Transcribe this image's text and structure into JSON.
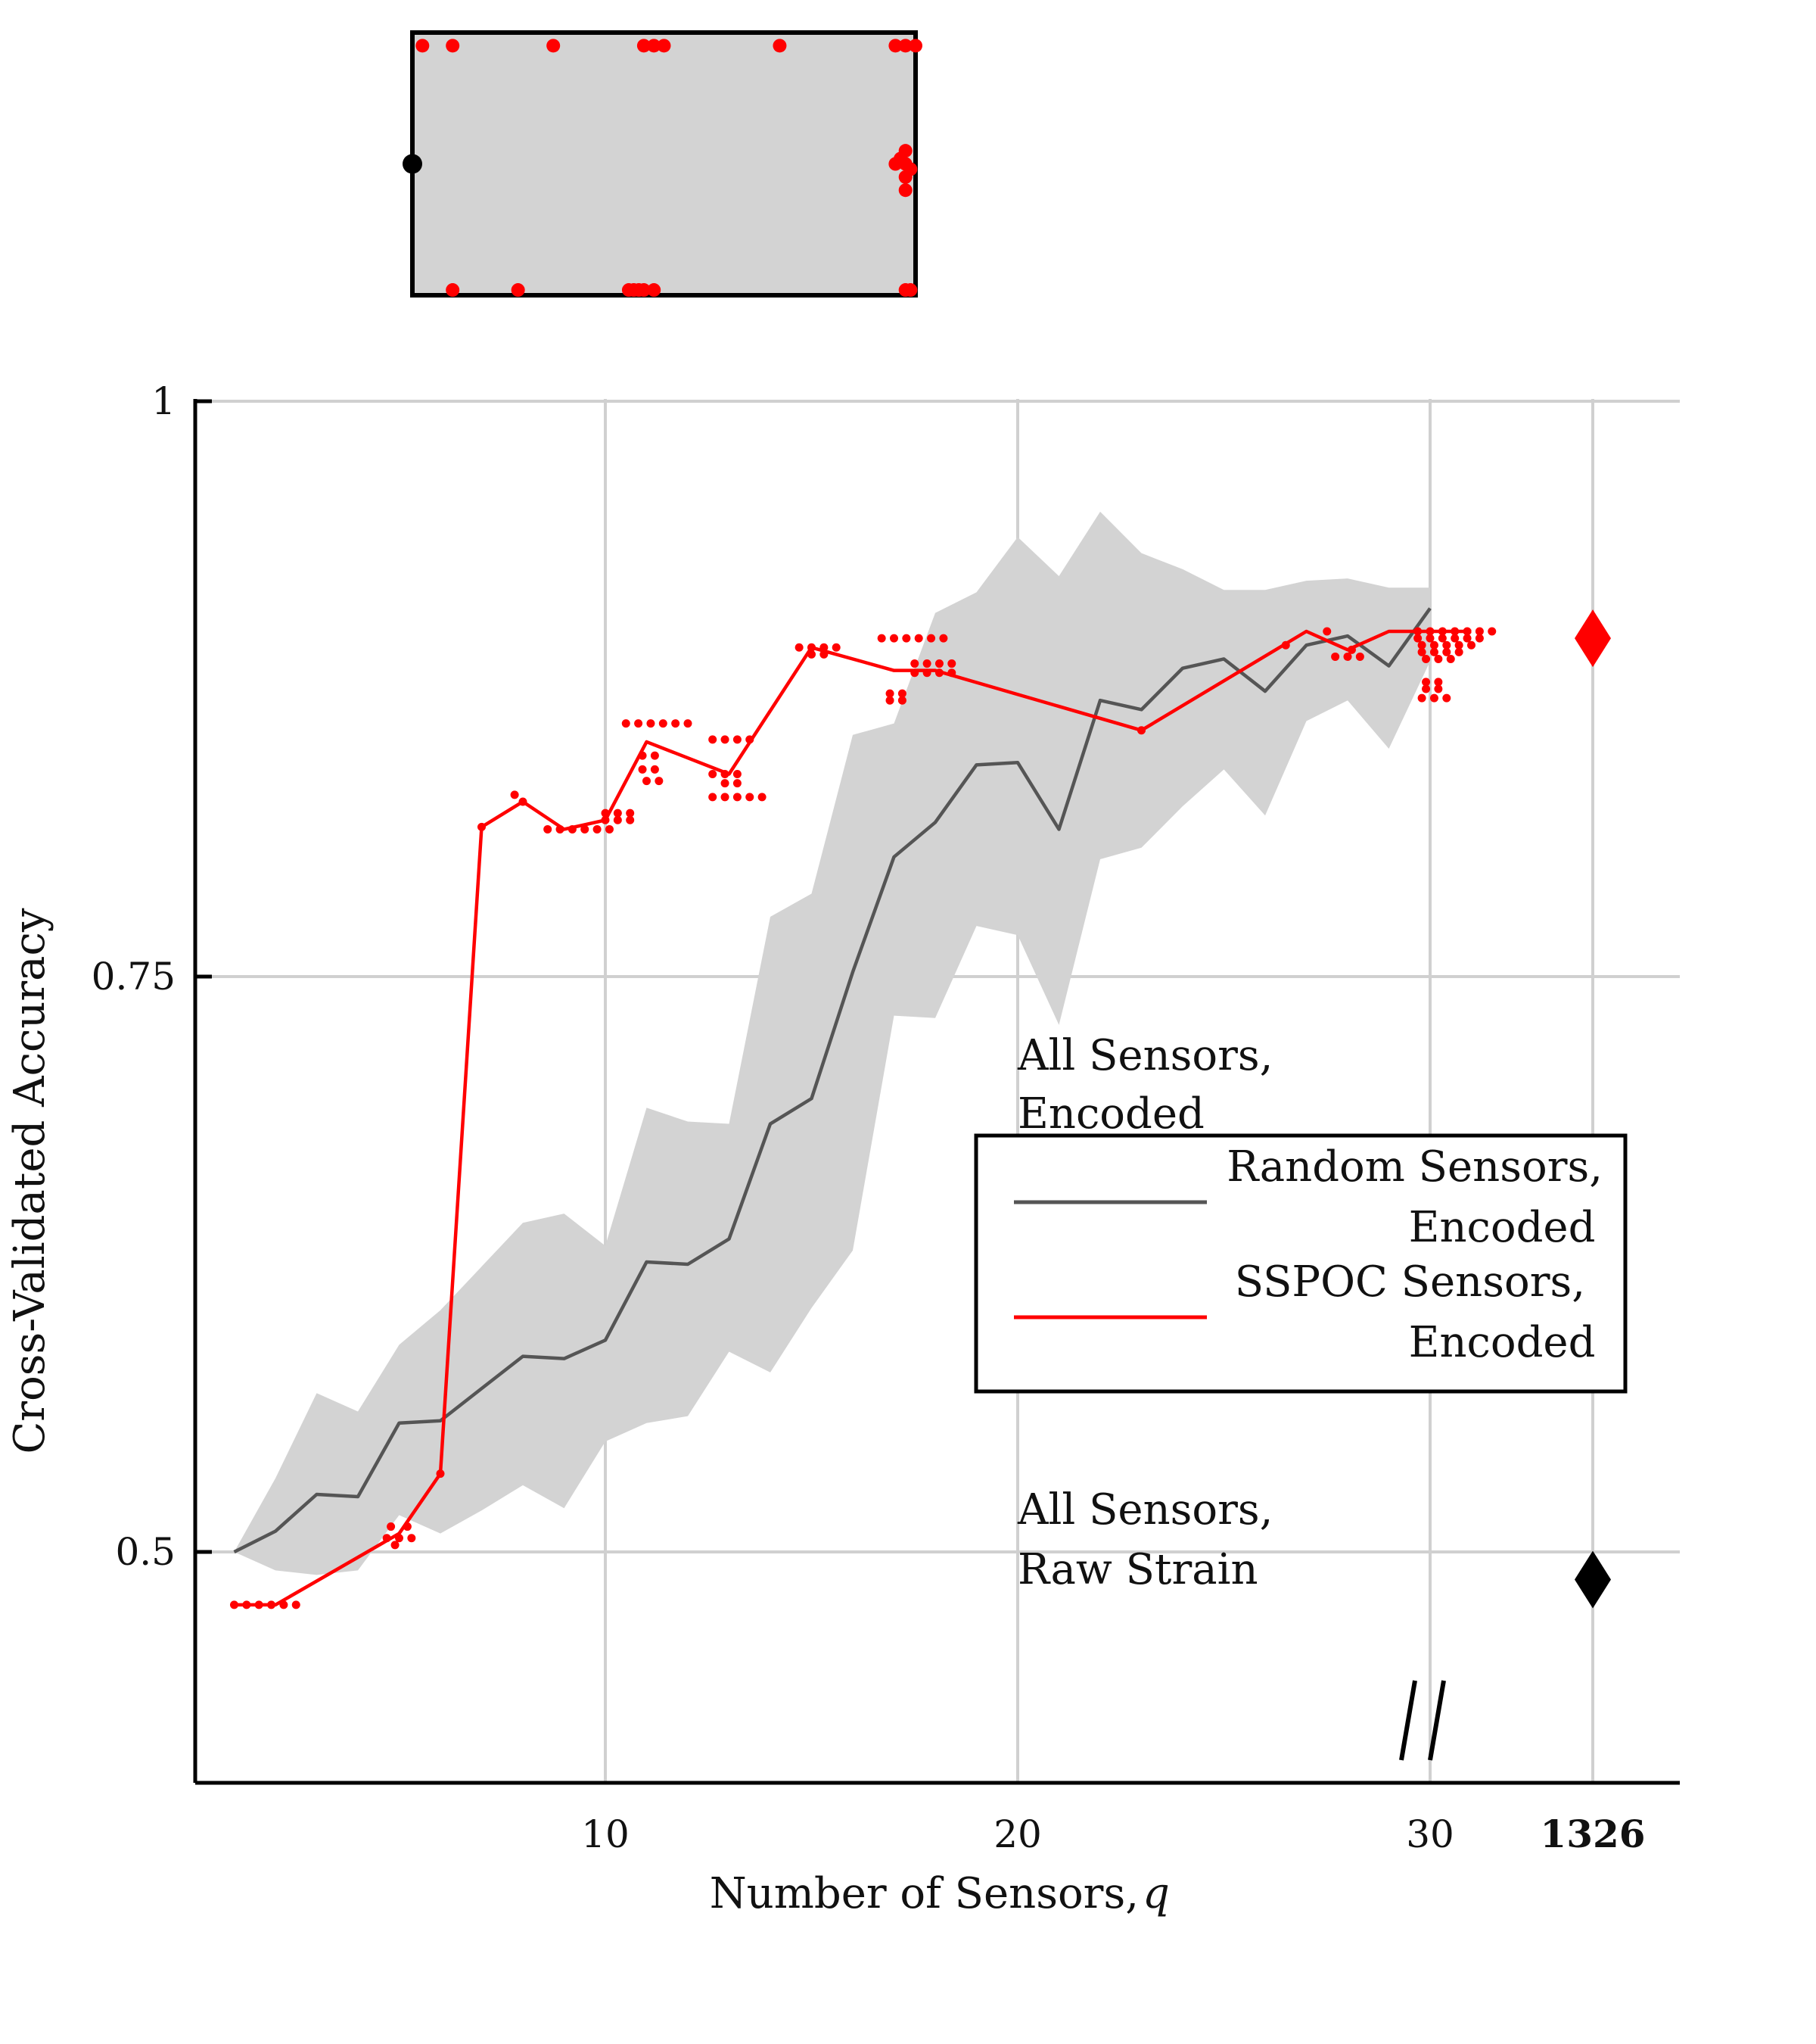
{
  "chart_data": {
    "type": "line",
    "xlabel": "Number of Sensors, ",
    "xlabel_var": "q",
    "ylabel": "Cross-Validated Accuracy",
    "xlim": [
      0,
      34
    ],
    "ylim": [
      0.44,
      1.0
    ],
    "x_ticks": [
      10,
      20,
      30
    ],
    "x_break_tick": "1326",
    "y_ticks": [
      0.5,
      0.75,
      1
    ],
    "y_tick_labels": [
      "0.5",
      "0.75",
      "1"
    ],
    "grid": true,
    "legend_position": "center-right",
    "colors": {
      "random": "#555555",
      "sspoc": "#ff0000",
      "band": "#d3d3d3",
      "encoded_marker": "#ff0000",
      "raw_marker": "#000000"
    },
    "series": [
      {
        "name": "Random Sensors,\nEncoded",
        "x": [
          1,
          2,
          3,
          4,
          5,
          6,
          7,
          8,
          9,
          10,
          11,
          12,
          13,
          14,
          15,
          16,
          17,
          18,
          19,
          20,
          21,
          22,
          23,
          24,
          25,
          26,
          27,
          28,
          29,
          30
        ],
        "y": [
          0.5,
          0.509,
          0.525,
          0.524,
          0.556,
          0.557,
          0.571,
          0.585,
          0.584,
          0.592,
          0.626,
          0.625,
          0.636,
          0.686,
          0.697,
          0.752,
          0.802,
          0.817,
          0.842,
          0.843,
          0.814,
          0.87,
          0.866,
          0.884,
          0.888,
          0.874,
          0.894,
          0.898,
          0.885,
          0.91
        ],
        "band_upper": [
          0.5,
          0.532,
          0.569,
          0.561,
          0.59,
          0.605,
          0.624,
          0.643,
          0.647,
          0.633,
          0.693,
          0.687,
          0.686,
          0.776,
          0.786,
          0.855,
          0.86,
          0.908,
          0.917,
          0.941,
          0.924,
          0.952,
          0.934,
          0.927,
          0.918,
          0.918,
          0.922,
          0.923,
          0.919,
          0.919
        ],
        "band_lower": [
          0.5,
          0.492,
          0.49,
          0.492,
          0.516,
          0.508,
          0.518,
          0.529,
          0.519,
          0.548,
          0.556,
          0.559,
          0.587,
          0.578,
          0.606,
          0.631,
          0.733,
          0.732,
          0.772,
          0.768,
          0.729,
          0.801,
          0.806,
          0.824,
          0.84,
          0.82,
          0.861,
          0.87,
          0.849,
          0.887
        ]
      },
      {
        "name": "SSPOC Sensors,\nEncoded",
        "x": [
          1,
          2,
          5,
          6,
          7,
          8,
          9,
          10,
          11,
          13,
          15,
          17,
          18,
          23,
          27,
          28,
          29,
          30,
          31
        ],
        "y": [
          0.477,
          0.477,
          0.508,
          0.534,
          0.815,
          0.826,
          0.814,
          0.818,
          0.852,
          0.838,
          0.893,
          0.883,
          0.883,
          0.857,
          0.9,
          0.892,
          0.9,
          0.9,
          0.9
        ],
        "scatter": [
          [
            1,
            0.477
          ],
          [
            1.3,
            0.477
          ],
          [
            1.6,
            0.477
          ],
          [
            1.9,
            0.477
          ],
          [
            2.2,
            0.477
          ],
          [
            2.5,
            0.477
          ],
          [
            4.7,
            0.506
          ],
          [
            5.0,
            0.506
          ],
          [
            5.3,
            0.506
          ],
          [
            4.8,
            0.511
          ],
          [
            5.2,
            0.511
          ],
          [
            4.9,
            0.503
          ],
          [
            6.0,
            0.534
          ],
          [
            7.0,
            0.815
          ],
          [
            8.0,
            0.826
          ],
          [
            7.8,
            0.829
          ],
          [
            8.6,
            0.814
          ],
          [
            8.9,
            0.814
          ],
          [
            9.2,
            0.814
          ],
          [
            9.5,
            0.814
          ],
          [
            9.8,
            0.814
          ],
          [
            10.1,
            0.814
          ],
          [
            10.0,
            0.818
          ],
          [
            10.3,
            0.818
          ],
          [
            10.6,
            0.818
          ],
          [
            10.0,
            0.821
          ],
          [
            10.3,
            0.821
          ],
          [
            10.6,
            0.821
          ],
          [
            10.5,
            0.86
          ],
          [
            10.8,
            0.86
          ],
          [
            11.1,
            0.86
          ],
          [
            11.4,
            0.86
          ],
          [
            11.7,
            0.86
          ],
          [
            12.0,
            0.86
          ],
          [
            10.9,
            0.846
          ],
          [
            11.2,
            0.846
          ],
          [
            10.9,
            0.84
          ],
          [
            11.2,
            0.84
          ],
          [
            11.0,
            0.835
          ],
          [
            11.3,
            0.835
          ],
          [
            12.6,
            0.853
          ],
          [
            12.9,
            0.853
          ],
          [
            13.2,
            0.853
          ],
          [
            13.5,
            0.853
          ],
          [
            12.6,
            0.838
          ],
          [
            12.9,
            0.838
          ],
          [
            13.2,
            0.838
          ],
          [
            12.9,
            0.834
          ],
          [
            13.2,
            0.834
          ],
          [
            12.6,
            0.828
          ],
          [
            12.9,
            0.828
          ],
          [
            13.2,
            0.828
          ],
          [
            13.5,
            0.828
          ],
          [
            13.8,
            0.828
          ],
          [
            14.7,
            0.893
          ],
          [
            15.0,
            0.893
          ],
          [
            15.3,
            0.893
          ],
          [
            15.6,
            0.893
          ],
          [
            15.0,
            0.89
          ],
          [
            15.3,
            0.89
          ],
          [
            16.7,
            0.897
          ],
          [
            17.0,
            0.897
          ],
          [
            17.3,
            0.897
          ],
          [
            17.6,
            0.897
          ],
          [
            17.9,
            0.897
          ],
          [
            18.2,
            0.897
          ],
          [
            16.9,
            0.873
          ],
          [
            17.2,
            0.873
          ],
          [
            16.9,
            0.87
          ],
          [
            17.2,
            0.87
          ],
          [
            17.5,
            0.886
          ],
          [
            17.8,
            0.886
          ],
          [
            18.1,
            0.886
          ],
          [
            18.4,
            0.886
          ],
          [
            17.5,
            0.882
          ],
          [
            17.8,
            0.882
          ],
          [
            18.1,
            0.882
          ],
          [
            18.4,
            0.882
          ],
          [
            23.0,
            0.857
          ],
          [
            26.5,
            0.894
          ],
          [
            27.5,
            0.9
          ],
          [
            27.7,
            0.889
          ],
          [
            28.0,
            0.889
          ],
          [
            28.3,
            0.889
          ],
          [
            28.1,
            0.892
          ],
          [
            29.7,
            0.9
          ],
          [
            30.0,
            0.9
          ],
          [
            30.3,
            0.9
          ],
          [
            30.6,
            0.9
          ],
          [
            30.9,
            0.9
          ],
          [
            31.2,
            0.9
          ],
          [
            31.5,
            0.9
          ],
          [
            29.7,
            0.897
          ],
          [
            30.0,
            0.897
          ],
          [
            30.3,
            0.897
          ],
          [
            30.6,
            0.897
          ],
          [
            30.9,
            0.897
          ],
          [
            31.2,
            0.897
          ],
          [
            29.8,
            0.894
          ],
          [
            30.1,
            0.894
          ],
          [
            30.4,
            0.894
          ],
          [
            30.7,
            0.894
          ],
          [
            31.0,
            0.894
          ],
          [
            29.8,
            0.891
          ],
          [
            30.1,
            0.891
          ],
          [
            30.4,
            0.891
          ],
          [
            30.7,
            0.891
          ],
          [
            29.9,
            0.888
          ],
          [
            30.2,
            0.888
          ],
          [
            30.5,
            0.888
          ],
          [
            29.9,
            0.878
          ],
          [
            30.2,
            0.878
          ],
          [
            29.9,
            0.875
          ],
          [
            30.2,
            0.875
          ],
          [
            29.8,
            0.871
          ],
          [
            30.1,
            0.871
          ],
          [
            30.4,
            0.871
          ]
        ]
      }
    ],
    "full_sensor_points": [
      {
        "label": "All Sensors,\nEncoded",
        "value": 0.897,
        "color": "#ff0000"
      },
      {
        "label": "All Sensors,\nRaw Strain",
        "value": 0.488,
        "color": "#000000"
      }
    ],
    "inset": {
      "description_free": true,
      "red_points": [
        [
          0.08,
          0.02
        ],
        [
          0.21,
          0.02
        ],
        [
          0.43,
          0.02
        ],
        [
          0.44,
          0.02
        ],
        [
          0.45,
          0.02
        ],
        [
          0.46,
          0.02
        ],
        [
          0.48,
          0.02
        ],
        [
          0.98,
          0.02
        ],
        [
          0.99,
          0.02
        ],
        [
          0.02,
          0.95
        ],
        [
          0.08,
          0.95
        ],
        [
          0.28,
          0.95
        ],
        [
          0.46,
          0.95
        ],
        [
          0.48,
          0.95
        ],
        [
          0.5,
          0.95
        ],
        [
          0.73,
          0.95
        ],
        [
          0.96,
          0.95
        ],
        [
          0.98,
          0.95
        ],
        [
          1.0,
          0.95
        ],
        [
          0.98,
          0.55
        ],
        [
          0.98,
          0.5
        ],
        [
          0.98,
          0.45
        ],
        [
          0.98,
          0.4
        ],
        [
          0.97,
          0.52
        ],
        [
          0.99,
          0.48
        ],
        [
          0.96,
          0.5
        ]
      ],
      "black_point": [
        0.0,
        0.5
      ]
    }
  },
  "legend": {
    "random_line1": "Random Sensors,",
    "random_line2": "Encoded",
    "sspoc_line1": "SSPOC Sensors,",
    "sspoc_line2": "Encoded"
  },
  "annotations": {
    "encoded_line1": "All Sensors,",
    "encoded_line2": "Encoded",
    "raw_line1": "All Sensors,",
    "raw_line2": "Raw Strain"
  }
}
